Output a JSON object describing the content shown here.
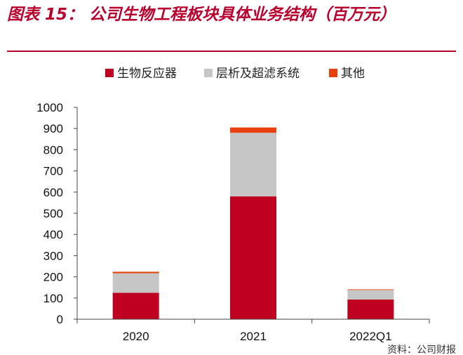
{
  "figure_title": "图表 15：  公司生物工程板块具体业务结构（百万元）",
  "chart_data": {
    "type": "bar",
    "stacked": true,
    "categories": [
      "2020",
      "2021",
      "2022Q1"
    ],
    "series": [
      {
        "name": "生物反应器",
        "color": "#c00020",
        "values": [
          125,
          580,
          93
        ]
      },
      {
        "name": "层析及超滤系统",
        "color": "#c6c6c6",
        "values": [
          92,
          300,
          45
        ]
      },
      {
        "name": "其他",
        "color": "#e8410f",
        "values": [
          7,
          25,
          3
        ]
      }
    ],
    "ylim": [
      0,
      1000
    ],
    "yticks": [
      0,
      100,
      200,
      300,
      400,
      500,
      600,
      700,
      800,
      900,
      1000
    ],
    "legend_position": "top",
    "grid": false
  },
  "source_note": "资料：公司财报"
}
